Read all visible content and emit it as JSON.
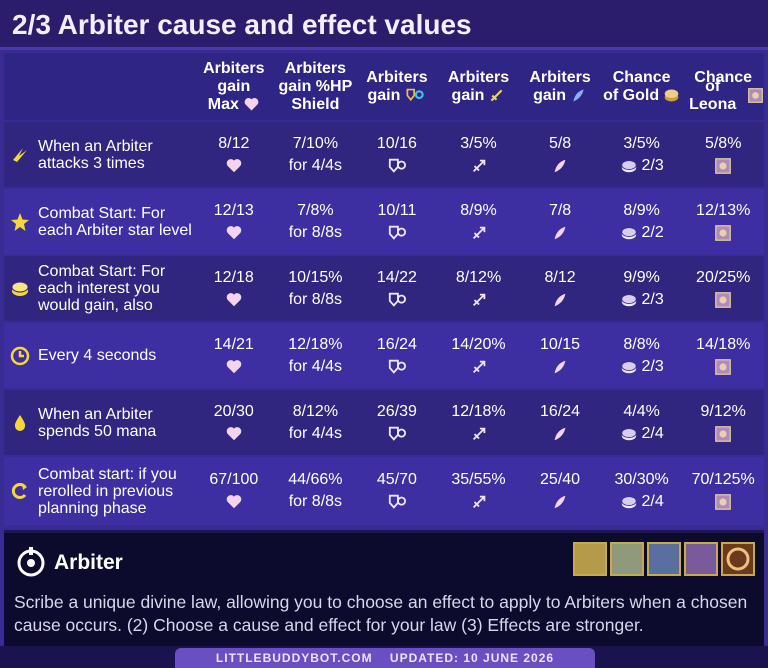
{
  "header": {
    "title": "2/3 Arbiter cause and effect values"
  },
  "table": {
    "columns": [
      [
        "Arbiters",
        "gain",
        "Max"
      ],
      [
        "Arbiters",
        "gain  %HP",
        "Shield"
      ],
      [
        "Arbiters",
        "gain"
      ],
      [
        "Arbiters",
        "gain"
      ],
      [
        "Arbiters",
        "gain"
      ],
      [
        "Chance",
        "of Gold"
      ],
      [
        "Chance",
        "of Leona"
      ]
    ],
    "rows": [
      {
        "cause": "When an Arbiter attacks 3 times",
        "values": [
          "8/12",
          "7/10%",
          "10/16",
          "3/5%",
          "5/8",
          "3/5%",
          "5/8%"
        ],
        "shield_duration": "for 4/4s",
        "gold_detail": "2/3"
      },
      {
        "cause": "Combat Start: For each Arbiter star level",
        "values": [
          "12/13",
          "7/8%",
          "10/11",
          "8/9%",
          "7/8",
          "8/9%",
          "12/13%"
        ],
        "shield_duration": "for 8/8s",
        "gold_detail": "2/2"
      },
      {
        "cause": "Combat Start: For each interest you would gain, also",
        "values": [
          "12/18",
          "10/15%",
          "14/22",
          "8/12%",
          "8/12",
          "9/9%",
          "20/25%"
        ],
        "shield_duration": "for 8/8s",
        "gold_detail": "2/3"
      },
      {
        "cause": "Every 4 seconds",
        "values": [
          "14/21",
          "12/18%",
          "16/24",
          "14/20%",
          "10/15",
          "8/8%",
          "14/18%"
        ],
        "shield_duration": "for 4/4s",
        "gold_detail": "2/3"
      },
      {
        "cause": "When an Arbiter spends 50 mana",
        "values": [
          "20/30",
          "8/12%",
          "26/39",
          "12/18%",
          "16/24",
          "4/4%",
          "9/12%"
        ],
        "shield_duration": "for 4/4s",
        "gold_detail": "2/4"
      },
      {
        "cause": "Combat start: if you rerolled in previous planning phase",
        "values": [
          "67/100",
          "44/66%",
          "45/70",
          "35/55%",
          "25/40",
          "30/30%",
          "70/125%"
        ],
        "shield_duration": "for 8/8s",
        "gold_detail": "2/4"
      }
    ]
  },
  "trait": {
    "name": "Arbiter",
    "description": "Scribe a unique divine law, allowing you to choose an effect to apply to Arbiters when a chosen cause occurs.  (2) Choose a cause and effect for your law  (3) Effects are stronger."
  },
  "footer": {
    "site": "LITTLEBUDDYBOT.COM",
    "updated": "UPDATED: 10 JUNE 2026"
  }
}
